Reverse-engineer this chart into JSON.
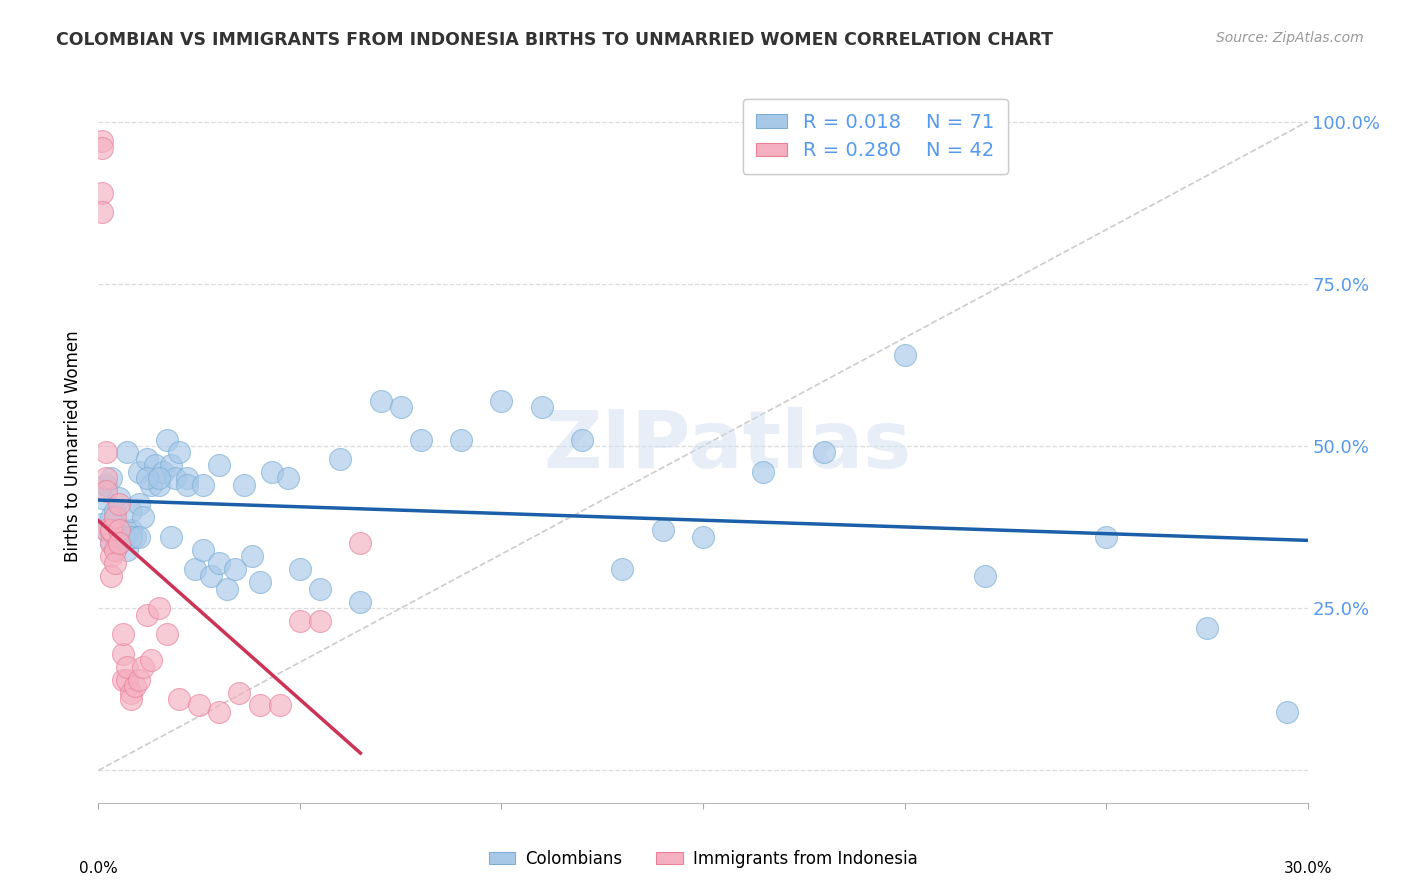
{
  "title": "COLOMBIAN VS IMMIGRANTS FROM INDONESIA BIRTHS TO UNMARRIED WOMEN CORRELATION CHART",
  "source": "Source: ZipAtlas.com",
  "ylabel": "Births to Unmarried Women",
  "xlim": [
    0.0,
    0.3
  ],
  "ylim": [
    -0.05,
    1.05
  ],
  "watermark": "ZIPatlas",
  "legend_r1": "R = 0.018",
  "legend_n1": "N = 71",
  "legend_r2": "R = 0.280",
  "legend_n2": "N = 42",
  "color_blue": "#a8c8e8",
  "color_blue_marker": "#7aaed4",
  "color_pink": "#f4b0c0",
  "color_pink_marker": "#e8809a",
  "color_trend_blue": "#1a5fa8",
  "color_trend_pink": "#cc3355",
  "color_diag": "#cccccc",
  "color_right_axis": "#5599ee",
  "color_grid": "#dddddd",
  "ytick_vals": [
    0.0,
    0.25,
    0.5,
    0.75,
    1.0
  ],
  "ytick_labels": [
    "",
    "25.0%",
    "50.0%",
    "75.0%",
    "100.0%"
  ],
  "blue_x": [
    0.001,
    0.001,
    0.002,
    0.002,
    0.003,
    0.003,
    0.003,
    0.004,
    0.004,
    0.005,
    0.005,
    0.006,
    0.007,
    0.007,
    0.008,
    0.008,
    0.009,
    0.01,
    0.01,
    0.011,
    0.012,
    0.013,
    0.014,
    0.015,
    0.016,
    0.017,
    0.018,
    0.019,
    0.02,
    0.022,
    0.024,
    0.026,
    0.028,
    0.03,
    0.032,
    0.034,
    0.036,
    0.04,
    0.043,
    0.047,
    0.05,
    0.055,
    0.06,
    0.065,
    0.07,
    0.075,
    0.08,
    0.09,
    0.1,
    0.11,
    0.12,
    0.13,
    0.14,
    0.15,
    0.165,
    0.18,
    0.2,
    0.22,
    0.25,
    0.275,
    0.295,
    0.006,
    0.008,
    0.01,
    0.012,
    0.015,
    0.018,
    0.022,
    0.026,
    0.03,
    0.038
  ],
  "blue_y": [
    0.38,
    0.42,
    0.37,
    0.44,
    0.35,
    0.39,
    0.45,
    0.36,
    0.4,
    0.35,
    0.42,
    0.37,
    0.34,
    0.49,
    0.37,
    0.4,
    0.36,
    0.41,
    0.46,
    0.39,
    0.48,
    0.44,
    0.47,
    0.44,
    0.46,
    0.51,
    0.47,
    0.45,
    0.49,
    0.45,
    0.31,
    0.34,
    0.3,
    0.32,
    0.28,
    0.31,
    0.44,
    0.29,
    0.46,
    0.45,
    0.31,
    0.28,
    0.48,
    0.26,
    0.57,
    0.56,
    0.51,
    0.51,
    0.57,
    0.56,
    0.51,
    0.31,
    0.37,
    0.36,
    0.46,
    0.49,
    0.64,
    0.3,
    0.36,
    0.22,
    0.09,
    0.36,
    0.36,
    0.36,
    0.45,
    0.45,
    0.36,
    0.44,
    0.44,
    0.47,
    0.33
  ],
  "pink_x": [
    0.001,
    0.001,
    0.001,
    0.001,
    0.002,
    0.002,
    0.002,
    0.002,
    0.003,
    0.003,
    0.003,
    0.003,
    0.003,
    0.004,
    0.004,
    0.004,
    0.005,
    0.005,
    0.005,
    0.006,
    0.006,
    0.006,
    0.007,
    0.007,
    0.008,
    0.008,
    0.009,
    0.01,
    0.011,
    0.012,
    0.013,
    0.015,
    0.017,
    0.02,
    0.025,
    0.03,
    0.035,
    0.04,
    0.045,
    0.05,
    0.055,
    0.065
  ],
  "pink_y": [
    0.97,
    0.96,
    0.89,
    0.86,
    0.45,
    0.49,
    0.43,
    0.37,
    0.35,
    0.33,
    0.3,
    0.37,
    0.37,
    0.34,
    0.32,
    0.39,
    0.37,
    0.35,
    0.41,
    0.18,
    0.21,
    0.14,
    0.14,
    0.16,
    0.12,
    0.11,
    0.13,
    0.14,
    0.16,
    0.24,
    0.17,
    0.25,
    0.21,
    0.11,
    0.1,
    0.09,
    0.12,
    0.1,
    0.1,
    0.23,
    0.23,
    0.35
  ]
}
